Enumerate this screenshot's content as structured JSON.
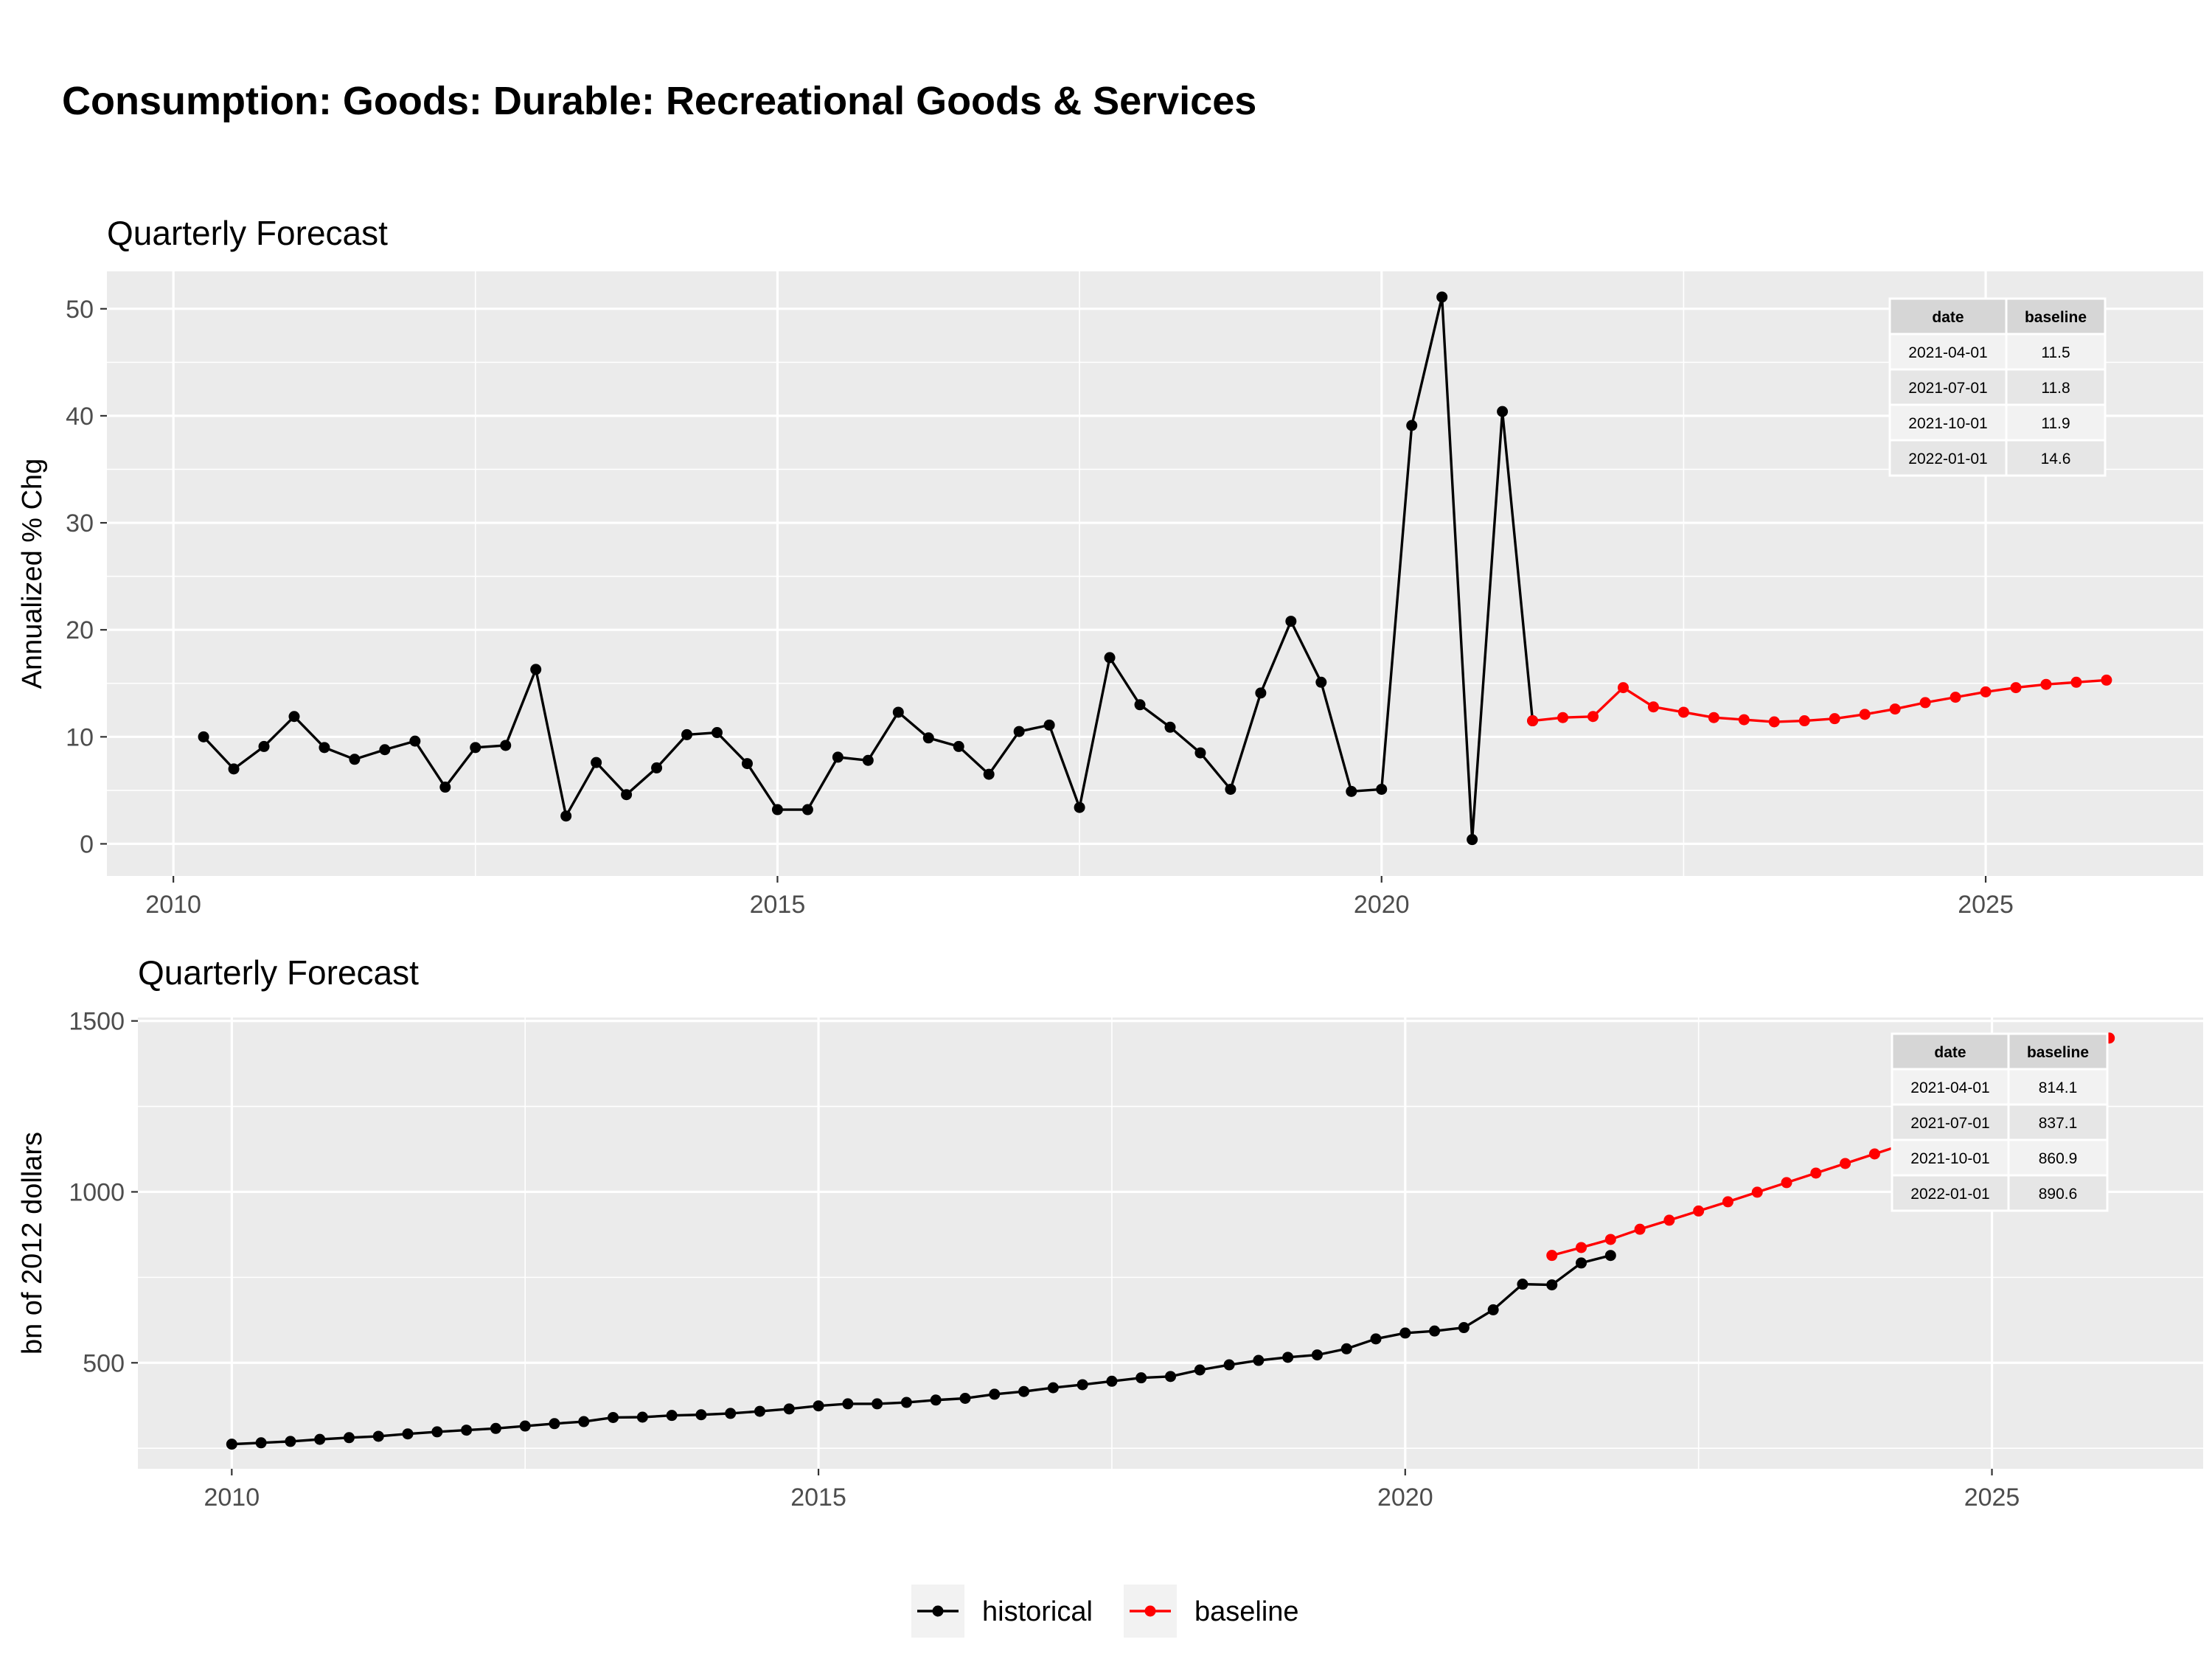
{
  "title": "Consumption: Goods: Durable: Recreational Goods & Services",
  "legend": [
    {
      "label": "historical",
      "color": "#000000"
    },
    {
      "label": "baseline",
      "color": "#ff0000"
    }
  ],
  "chart_data": [
    {
      "type": "line",
      "subtitle": "Quarterly Forecast",
      "ylabel": "Annualized % Chg",
      "xlabel": "",
      "xlim": [
        2009.45,
        2026.8
      ],
      "ylim": [
        -3,
        53.5
      ],
      "xticks": [
        2010,
        2015,
        2020,
        2025
      ],
      "yticks": [
        0,
        10,
        20,
        30,
        40,
        50
      ],
      "grid": true,
      "series": [
        {
          "name": "historical",
          "color": "#000000",
          "start": 2010.25,
          "step": 0.25,
          "values": [
            10.0,
            7.0,
            9.1,
            11.9,
            9.0,
            7.9,
            8.8,
            9.6,
            5.3,
            9.0,
            9.2,
            16.3,
            2.6,
            7.6,
            4.6,
            7.1,
            10.2,
            10.4,
            7.5,
            3.2,
            3.2,
            8.1,
            7.8,
            12.3,
            9.9,
            9.1,
            6.5,
            10.5,
            11.1,
            3.4,
            17.4,
            13.0,
            10.9,
            8.5,
            5.1,
            14.1,
            20.8,
            15.1,
            4.9,
            5.1,
            39.1,
            51.1,
            0.4,
            40.4,
            11.5
          ]
        },
        {
          "name": "baseline",
          "color": "#ff0000",
          "start": 2021.25,
          "step": 0.25,
          "values": [
            11.5,
            11.8,
            11.9,
            14.6,
            12.8,
            12.3,
            11.8,
            11.6,
            11.4,
            11.5,
            11.7,
            12.1,
            12.6,
            13.2,
            13.7,
            14.2,
            14.6,
            14.9,
            15.1,
            15.3
          ]
        }
      ],
      "table": {
        "headers": [
          "date",
          "baseline"
        ],
        "rows": [
          [
            "2021-04-01",
            "11.5"
          ],
          [
            "2021-07-01",
            "11.8"
          ],
          [
            "2021-10-01",
            "11.9"
          ],
          [
            "2022-01-01",
            "14.6"
          ]
        ]
      }
    },
    {
      "type": "line",
      "subtitle": "Quarterly Forecast",
      "ylabel": "bn of 2012 dollars",
      "xlabel": "",
      "xlim": [
        2009.2,
        2026.8
      ],
      "ylim": [
        190,
        1510
      ],
      "xticks": [
        2010,
        2015,
        2020,
        2025
      ],
      "yticks": [
        500,
        1000,
        1500
      ],
      "grid": true,
      "series": [
        {
          "name": "historical",
          "color": "#000000",
          "start": 2010.0,
          "step": 0.25,
          "values": [
            262,
            266,
            270,
            276,
            281,
            285,
            292,
            298,
            303,
            308,
            315,
            322,
            328,
            340,
            341,
            346,
            348,
            352,
            358,
            365,
            374,
            380,
            380,
            384,
            391,
            396,
            408,
            416,
            427,
            436,
            446,
            456,
            460,
            479,
            494,
            507,
            516,
            523,
            541,
            570,
            587,
            593,
            603,
            655,
            730,
            728,
            792,
            814
          ]
        },
        {
          "name": "baseline",
          "color": "#ff0000",
          "start": 2021.25,
          "step": 0.25,
          "values": [
            814.1,
            837.1,
            860.9,
            890.6,
            917,
            944,
            971,
            999,
            1027,
            1055,
            1083,
            1111,
            1139,
            1167,
            1195,
            1223,
            1251,
            1279,
            1307,
            1450
          ]
        }
      ],
      "table": {
        "headers": [
          "date",
          "baseline"
        ],
        "rows": [
          [
            "2021-04-01",
            "814.1"
          ],
          [
            "2021-07-01",
            "837.1"
          ],
          [
            "2021-10-01",
            "860.9"
          ],
          [
            "2022-01-01",
            "890.6"
          ]
        ]
      }
    }
  ]
}
